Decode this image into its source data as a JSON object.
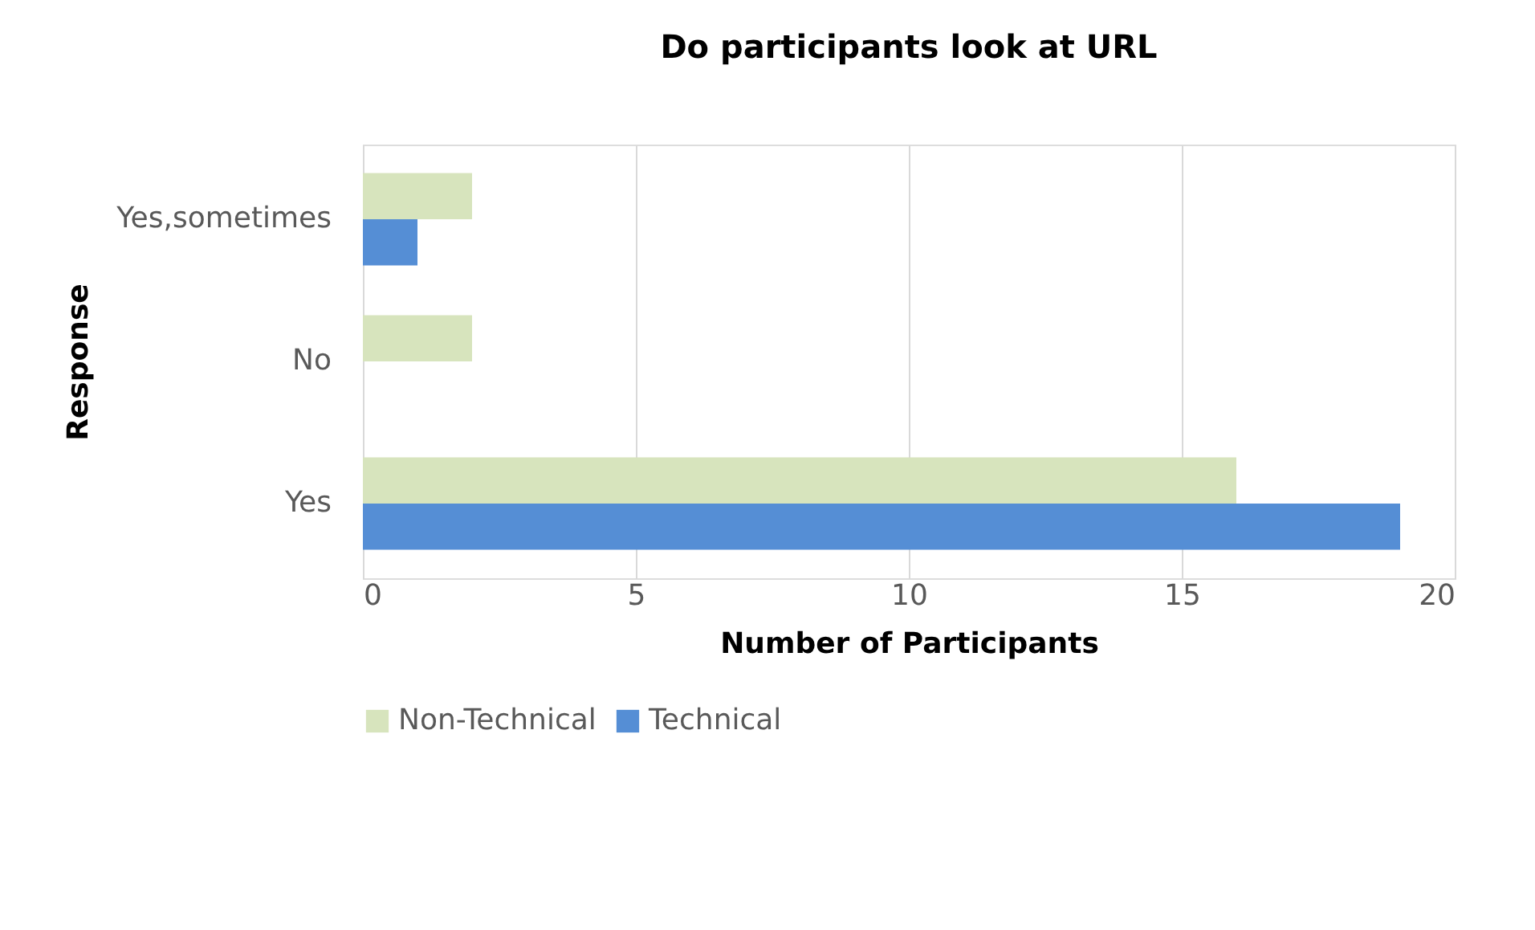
{
  "chart_data": {
    "type": "bar",
    "orientation": "horizontal",
    "title": "Do participants look at URL",
    "xlabel": "Number of Participants",
    "ylabel": "Response",
    "categories": [
      "Yes,sometimes",
      "No",
      "Yes"
    ],
    "series": [
      {
        "name": "Non-Technical",
        "color": "#d7e4bd",
        "values": [
          2,
          2,
          16
        ]
      },
      {
        "name": "Technical",
        "color": "#558ed5",
        "values": [
          1,
          0,
          19
        ]
      }
    ],
    "xlim": [
      0,
      20
    ],
    "xticks": [
      0,
      5,
      10,
      15,
      20
    ],
    "grid": "x",
    "legend": "bottom"
  }
}
